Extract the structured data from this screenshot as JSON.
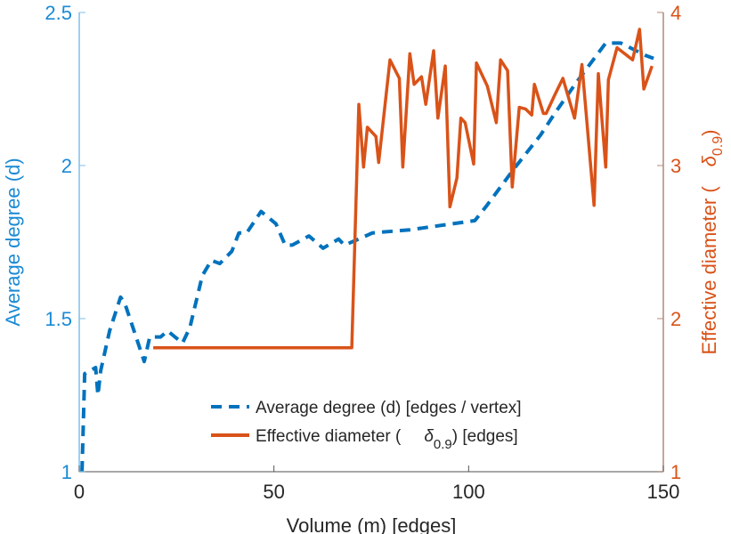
{
  "colors": {
    "left": "#0072BD",
    "left_axis": "#7fbfea",
    "right": "#D95319",
    "right_axis": "#b08878",
    "text": "#262626"
  },
  "chart_data": {
    "type": "line",
    "xlabel": "Volume (m) [edges]",
    "ylabel_left": "Average degree (d)",
    "ylabel_right_prefix": "Effective diameter (",
    "ylabel_right_symbol": "δ",
    "ylabel_right_sub": "0.9",
    "ylabel_right_suffix": ")",
    "xlim": [
      0,
      150
    ],
    "ylim_left": [
      1,
      2.5
    ],
    "ylim_right": [
      1,
      4
    ],
    "xticks": [
      "0",
      "50",
      "100",
      "150"
    ],
    "xtick_values": [
      0,
      50,
      100,
      150
    ],
    "yticks_left": [
      "1",
      "1.5",
      "2",
      "2.5"
    ],
    "ytick_left_values": [
      1,
      1.5,
      2,
      2.5
    ],
    "yticks_right": [
      "1",
      "2",
      "3",
      "4"
    ],
    "ytick_right_values": [
      1,
      2,
      3,
      4
    ],
    "grid": false,
    "legend_position": "bottom-center",
    "series": [
      {
        "name": "Average degree (d) [edges / vertex]",
        "axis": "left",
        "style": "dashed",
        "points": [
          [
            0.7,
            1.0
          ],
          [
            1.4,
            1.32
          ],
          [
            4.2,
            1.34
          ],
          [
            4.8,
            1.25
          ],
          [
            5.5,
            1.33
          ],
          [
            7.8,
            1.46
          ],
          [
            10.6,
            1.57
          ],
          [
            11.7,
            1.55
          ],
          [
            16.7,
            1.36
          ],
          [
            18.1,
            1.44
          ],
          [
            20.9,
            1.44
          ],
          [
            22.7,
            1.46
          ],
          [
            26.5,
            1.42
          ],
          [
            28.4,
            1.47
          ],
          [
            31.6,
            1.64
          ],
          [
            33.9,
            1.69
          ],
          [
            36.1,
            1.68
          ],
          [
            39.2,
            1.72
          ],
          [
            41.0,
            1.78
          ],
          [
            43.0,
            1.78
          ],
          [
            46.7,
            1.85
          ],
          [
            50.5,
            1.81
          ],
          [
            52.9,
            1.74
          ],
          [
            54.7,
            1.74
          ],
          [
            59.0,
            1.77
          ],
          [
            62.6,
            1.73
          ],
          [
            66.6,
            1.76
          ],
          [
            68.1,
            1.74
          ],
          [
            71.8,
            1.76
          ],
          [
            75.3,
            1.78
          ],
          [
            84.9,
            1.79
          ],
          [
            101.6,
            1.82
          ],
          [
            104.7,
            1.87
          ],
          [
            111.7,
            1.99
          ],
          [
            118.5,
            2.1
          ],
          [
            122.1,
            2.17
          ],
          [
            127.6,
            2.27
          ],
          [
            135.2,
            2.4
          ],
          [
            139.1,
            2.4
          ],
          [
            145.4,
            2.36
          ],
          [
            147.5,
            2.35
          ]
        ]
      },
      {
        "name_prefix": "Effective diameter (",
        "name_symbol": "δ",
        "name_sub": "0.9",
        "name_suffix": ") [edges]",
        "axis": "right",
        "style": "solid",
        "points": [
          [
            19.0,
            1.81
          ],
          [
            70.0,
            1.81
          ],
          [
            71.8,
            3.4
          ],
          [
            73.0,
            2.99
          ],
          [
            74.0,
            3.25
          ],
          [
            76.2,
            3.19
          ],
          [
            76.9,
            3.02
          ],
          [
            79.8,
            3.69
          ],
          [
            82.2,
            3.57
          ],
          [
            83.1,
            2.99
          ],
          [
            84.9,
            3.73
          ],
          [
            86.0,
            3.53
          ],
          [
            87.9,
            3.58
          ],
          [
            89.0,
            3.4
          ],
          [
            91.0,
            3.75
          ],
          [
            92.1,
            3.31
          ],
          [
            94.0,
            3.65
          ],
          [
            95.2,
            2.73
          ],
          [
            97.0,
            2.92
          ],
          [
            98.0,
            3.31
          ],
          [
            99.1,
            3.28
          ],
          [
            101.3,
            3.01
          ],
          [
            102.0,
            3.67
          ],
          [
            104.8,
            3.52
          ],
          [
            107.1,
            3.28
          ],
          [
            108.2,
            3.69
          ],
          [
            110.0,
            3.62
          ],
          [
            111.2,
            2.86
          ],
          [
            113.0,
            3.38
          ],
          [
            114.6,
            3.37
          ],
          [
            116.2,
            3.33
          ],
          [
            116.9,
            3.53
          ],
          [
            119.2,
            3.34
          ],
          [
            119.9,
            3.34
          ],
          [
            122.1,
            3.46
          ],
          [
            124.2,
            3.57
          ],
          [
            127.2,
            3.31
          ],
          [
            129.1,
            3.66
          ],
          [
            132.2,
            2.74
          ],
          [
            133.3,
            3.6
          ],
          [
            135.2,
            2.99
          ],
          [
            135.9,
            3.56
          ],
          [
            138.1,
            3.77
          ],
          [
            142.1,
            3.69
          ],
          [
            143.9,
            3.89
          ],
          [
            145.0,
            3.5
          ],
          [
            147.1,
            3.65
          ]
        ]
      }
    ]
  }
}
